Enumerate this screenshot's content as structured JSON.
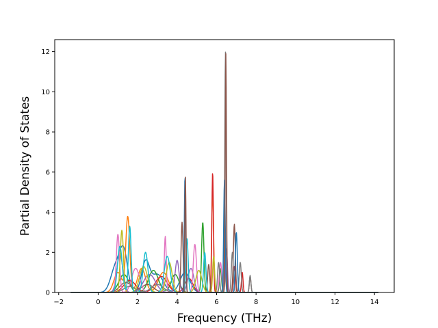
{
  "chart_data": {
    "type": "line",
    "title": "",
    "xlabel": "Frequency (THz)",
    "ylabel": "Partial Density of States",
    "xlim": [
      -2.2,
      15.0
    ],
    "ylim": [
      0,
      12.6
    ],
    "xticks": [
      -2,
      0,
      2,
      4,
      6,
      8,
      10,
      12,
      14
    ],
    "yticks": [
      0,
      2,
      4,
      6,
      8,
      10,
      12
    ],
    "grid": false,
    "legend": "none",
    "x_range_of_curves": [
      -1.4,
      14.2
    ],
    "series": [
      {
        "color": "#1f77b4",
        "peaks": [
          [
            0.9,
            1.3,
            0.25
          ],
          [
            1.3,
            1.9,
            0.2
          ],
          [
            2.4,
            1.5,
            0.2
          ],
          [
            3.0,
            0.9,
            0.3
          ],
          [
            4.4,
            1.0,
            0.25
          ]
        ]
      },
      {
        "color": "#ff7f0e",
        "peaks": [
          [
            1.0,
            1.0,
            0.2
          ],
          [
            1.5,
            3.75,
            0.1
          ],
          [
            2.2,
            1.2,
            0.2
          ],
          [
            3.3,
            1.0,
            0.25
          ],
          [
            5.8,
            5.0,
            0.05
          ],
          [
            6.4,
            1.5,
            0.05
          ]
        ]
      },
      {
        "color": "#2ca02c",
        "peaks": [
          [
            1.3,
            0.9,
            0.25
          ],
          [
            2.8,
            1.1,
            0.25
          ],
          [
            3.9,
            0.9,
            0.2
          ],
          [
            5.3,
            3.5,
            0.06
          ],
          [
            6.2,
            1.2,
            0.05
          ]
        ]
      },
      {
        "color": "#d62728",
        "peaks": [
          [
            1.6,
            0.6,
            0.3
          ],
          [
            3.2,
            0.8,
            0.3
          ],
          [
            4.6,
            0.7,
            0.2
          ],
          [
            5.8,
            6.0,
            0.04
          ],
          [
            6.9,
            1.3,
            0.05
          ],
          [
            7.3,
            1.0,
            0.04
          ]
        ]
      },
      {
        "color": "#9467bd",
        "peaks": [
          [
            1.1,
            1.9,
            0.15
          ],
          [
            2.6,
            0.9,
            0.3
          ],
          [
            4.0,
            1.6,
            0.1
          ],
          [
            4.7,
            1.2,
            0.15
          ],
          [
            6.5,
            2.2,
            0.05
          ]
        ]
      },
      {
        "color": "#8c564b",
        "peaks": [
          [
            1.4,
            0.5,
            0.3
          ],
          [
            2.5,
            0.4,
            0.3
          ],
          [
            4.25,
            3.5,
            0.05
          ],
          [
            5.6,
            1.4,
            0.05
          ],
          [
            6.9,
            3.4,
            0.05
          ],
          [
            7.7,
            0.8,
            0.04
          ]
        ]
      },
      {
        "color": "#e377c2",
        "peaks": [
          [
            1.0,
            2.9,
            0.08
          ],
          [
            1.9,
            1.2,
            0.2
          ],
          [
            3.4,
            2.8,
            0.05
          ],
          [
            4.9,
            2.4,
            0.08
          ],
          [
            6.2,
            1.5,
            0.06
          ]
        ]
      },
      {
        "color": "#7f7f7f",
        "peaks": [
          [
            1.6,
            0.3,
            0.3
          ],
          [
            3.0,
            0.4,
            0.3
          ],
          [
            6.1,
            1.5,
            0.05
          ],
          [
            6.45,
            12.0,
            0.035
          ],
          [
            6.8,
            2.0,
            0.05
          ],
          [
            7.2,
            1.5,
            0.05
          ],
          [
            7.7,
            0.85,
            0.04
          ]
        ]
      },
      {
        "color": "#bcbd22",
        "peaks": [
          [
            1.2,
            3.1,
            0.08
          ],
          [
            2.3,
            1.3,
            0.2
          ],
          [
            3.6,
            1.5,
            0.15
          ],
          [
            5.1,
            1.1,
            0.15
          ],
          [
            5.85,
            1.8,
            0.05
          ]
        ]
      },
      {
        "color": "#17becf",
        "peaks": [
          [
            1.1,
            2.3,
            0.12
          ],
          [
            1.6,
            3.3,
            0.07
          ],
          [
            2.4,
            2.0,
            0.12
          ],
          [
            3.5,
            1.8,
            0.15
          ],
          [
            4.5,
            2.7,
            0.06
          ],
          [
            5.4,
            2.0,
            0.06
          ]
        ]
      },
      {
        "color": "#1f77b4",
        "peaks": [
          [
            4.4,
            5.8,
            0.035
          ],
          [
            6.4,
            5.6,
            0.04
          ],
          [
            7.0,
            3.0,
            0.05
          ]
        ]
      },
      {
        "color": "#8c564b",
        "peaks": [
          [
            4.42,
            5.8,
            0.03
          ],
          [
            6.47,
            11.9,
            0.03
          ]
        ]
      }
    ]
  }
}
